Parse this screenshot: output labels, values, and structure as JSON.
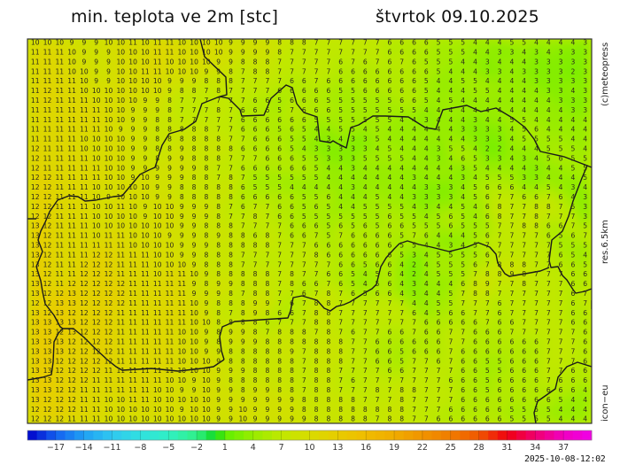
{
  "header": {
    "title": "min. teplota ve 2m [stc]",
    "date": "štvrtok 09.10.2025"
  },
  "side_labels": {
    "copyright": "(c)meteopress",
    "resolution": "res.6.5km",
    "model": "icon−eu"
  },
  "timestamp": "2025-10-08-12:02",
  "colorbar": {
    "range": [
      -20,
      40
    ],
    "tick_labels": [
      "−17",
      "−14",
      "−11",
      "−8",
      "−5",
      "−2",
      "1",
      "4",
      "7",
      "10",
      "13",
      "16",
      "19",
      "22",
      "25",
      "28",
      "31",
      "34",
      "37"
    ],
    "tick_values": [
      -17,
      -14,
      -11,
      -8,
      -5,
      -2,
      1,
      4,
      7,
      10,
      13,
      16,
      19,
      22,
      25,
      28,
      31,
      34,
      37
    ],
    "stops": [
      {
        "value": -20,
        "color": "#0000c8"
      },
      {
        "value": -17,
        "color": "#1460f0"
      },
      {
        "value": -14,
        "color": "#20a0f4"
      },
      {
        "value": -11,
        "color": "#30c8f0"
      },
      {
        "value": -8,
        "color": "#30e0e0"
      },
      {
        "value": -5,
        "color": "#30f0c4"
      },
      {
        "value": -2,
        "color": "#30f088"
      },
      {
        "value": 0,
        "color": "#10d820"
      },
      {
        "value": 1,
        "color": "#60f000"
      },
      {
        "value": 4,
        "color": "#98ec00"
      },
      {
        "value": 7,
        "color": "#c0e800"
      },
      {
        "value": 10,
        "color": "#d8dc00"
      },
      {
        "value": 13,
        "color": "#e8cc00"
      },
      {
        "value": 16,
        "color": "#f0bc00"
      },
      {
        "value": 19,
        "color": "#f0ac00"
      },
      {
        "value": 22,
        "color": "#f09400"
      },
      {
        "value": 25,
        "color": "#f07c00"
      },
      {
        "value": 28,
        "color": "#f05800"
      },
      {
        "value": 31,
        "color": "#f00010"
      },
      {
        "value": 34,
        "color": "#f00070"
      },
      {
        "value": 37,
        "color": "#f000c0"
      },
      {
        "value": 40,
        "color": "#f000e8"
      }
    ]
  },
  "grid": [
    "10 10 10 9 9 9 10 10 11 10 11 11 10 10 10 10 9 9 9 9 8 8 8 7 7 7 7 7 7 6 6 6 6 5 5 5 4 4 4 5 5 4 4 4 4 3",
    "11 11 11 10 9 9 9 10 10 10 11 11 10 10 10 10 9 9 9 9 8 7 7 7 7 7 7 7 7 6 6 6 6 5 5 5 4 4 3 3 4 3 4 3 3 3",
    "11 11 11 10 9 9 9 10 10 10 11 10 10 10 10 9 9 8 8 8 7 7 7 7 7 6 7 6 7 6 7 6 5 5 5 4 4 3 4 4 4 3 3 3 3 3",
    "11 11 11 10 10 9 9 10 10 11 11 10 10 10 9 9 8 7 8 8 7 7 7 7 7 6 6 6 6 6 6 6 6 5 4 4 4 3 3 4 3 3 3 3 2 3",
    "11 11 11 11 10 9 9 10 10 10 10 9 9 9 8 8 8 7 7 7 7 6 6 7 6 6 6 6 6 6 6 6 5 4 4 5 5 4 4 4 4 3 3 3 3 3",
    "11 12 11 11 10 10 10 10 10 10 10 9 8 8 7 8 7 7 7 7 6 6 6 6 6 5 5 6 6 6 6 6 5 4 4 4 5 5 4 4 4 4 3 3 4 3",
    "11 12 11 11 11 10 10 10 10 9 9 8 7 7 7 7 7 7 6 6 5 6 6 6 5 5 5 5 5 5 6 6 5 4 5 4 4 4 4 4 4 4 4 3 3 3",
    "11 11 11 11 11 11 10 10 9 9 9 8 7 7 7 8 7 6 6 6 5 7 6 6 6 5 5 5 5 5 5 5 4 4 4 4 4 4 4 4 4 4 4 4 3 3",
    "11 11 11 11 11 11 10 10 9 9 8 8 7 7 7 7 7 6 6 6 6 6 6 5 5 5 5 5 5 5 4 4 3 4 4 4 3 4 4 5 5 4 4 4 4 4",
    "11 11 11 11 11 11 10 9 9 9 8 8 8 8 8 7 7 6 6 6 5 6 5 4 4 5 5 4 5 4 4 4 4 4 4 3 3 3 3 4 5 6 4 4 4 4",
    "11 11 11 11 10 10 10 10 9 9 8 8 8 8 8 8 7 7 6 6 6 5 5 4 3 4 3 3 5 4 4 4 4 4 4 4 3 3 3 4 5 5 5 5 4 4",
    "12 11 11 11 10 10 10 10 9 9 8 8 9 8 8 8 8 6 6 6 6 5 4 3 3 3 3 3 4 5 4 4 4 3 5 5 4 2 2 4 4 4 5 5 5 4",
    "12 11 11 11 11 10 10 10 9 9 8 9 9 8 8 8 7 7 7 6 6 6 5 5 3 3 3 5 5 5 5 4 4 3 4 6 5 3 3 4 3 4 5 6 5 5",
    "12 11 11 11 11 11 10 10 9 9 9 9 9 9 8 7 7 6 6 6 6 6 6 5 4 4 3 4 4 4 4 4 4 4 4 3 5 4 4 4 4 3 4 4 5 5",
    "12 12 11 11 11 11 10 10 9 10 9 9 9 8 8 7 8 7 5 5 5 5 5 5 4 4 4 4 4 4 4 3 4 4 4 3 4 5 5 5 3 3 4 4 4 5",
    "12 12 11 11 11 10 10 10 10 10 9 9 8 8 8 8 8 6 5 5 5 4 4 4 4 4 3 4 4 4 4 4 3 3 3 4 5 6 6 6 4 4 5 4 3 4",
    "12 12 11 11 11 10 9 10 10 10 9 9 8 8 8 8 8 6 6 6 6 6 5 5 6 4 4 4 5 4 4 3 3 3 3 4 5 6 7 7 6 6 7 6 4 3",
    "12 12 11 11 11 10 10 11 10 9 10 10 9 9 9 8 7 6 7 7 6 6 5 6 5 4 4 5 5 5 5 4 3 4 4 5 4 6 8 7 7 8 8 7 5 3",
    "12 12 11 11 11 10 10 10 10 9 10 10 9 9 9 8 7 7 8 7 6 6 5 5 5 5 5 5 5 6 5 5 4 5 6 5 4 6 8 7 7 8 7 7 7 3",
    "13 12 11 11 11 10 10 10 10 10 10 10 9 9 8 8 8 7 7 7 7 6 6 6 5 6 5 6 5 6 6 5 5 5 6 5 5 5 7 7 8 8 6 6 7 5",
    "13 12 11 11 11 10 11 11 10 10 10 9 9 9 8 9 8 8 6 8 7 6 6 7 5 7 6 6 6 6 5 7 6 4 4 4 5 6 7 7 7 7 6 5 6 7",
    "13 12 11 11 11 11 11 11 10 10 10 10 9 9 9 8 8 8 8 8 7 7 7 6 6 6 6 6 6 6 5 5 4 4 3 4 5 7 7 7 7 7 7 5 5 5",
    "13 12 11 11 11 12 12 11 11 11 10 10 9 9 8 8 8 7 7 7 7 7 7 8 6 6 6 6 6 6 5 3 4 5 5 5 5 6 7 7 7 7 7 6 5 4",
    "13 12 11 11 12 12 12 11 11 11 10 10 10 9 8 8 8 7 7 7 7 7 7 7 7 6 6 5 6 6 4 2 4 5 5 5 6 7 8 8 8 7 7 6 6 5",
    "13 12 11 11 12 12 12 11 11 11 10 11 11 10 9 8 8 8 8 8 7 8 7 7 6 6 5 4 5 6 4 2 4 5 5 5 7 8 8 9 8 7 7 7 6 6",
    "13 12 11 12 12 12 12 12 11 11 11 11 11 9 8 9 9 8 8 8 7 8 6 6 7 6 5 4 5 6 4 3 4 4 4 6 8 9 7 7 8 7 7 7 6 6",
    "13 12 12 13 12 12 12 12 11 11 11 11 11 9 9 9 8 7 8 8 7 7 6 7 8 7 6 5 6 6 4 3 4 4 5 7 8 8 7 7 7 7 7 7 6 7",
    "12 12 13 13 12 12 12 12 11 11 11 11 11 10 9 8 8 8 9 9 7 6 7 8 8 7 7 7 7 7 7 4 4 5 5 7 7 7 6 7 7 7 7 7 6 7",
    "13 12 13 12 12 12 12 11 11 11 11 11 11 10 9 8 7 8 9 8 6 6 7 8 8 7 7 7 7 7 7 6 4 5 6 6 7 7 6 7 7 7 7 7 6 6",
    "13 13 13 13 12 12 12 11 11 11 11 11 11 10 10 8 8 8 8 6 7 7 7 8 8 7 7 7 7 7 7 7 6 6 6 6 6 7 6 6 7 7 7 7 6 6",
    "13 13 12 13 12 12 12 11 11 11 11 11 10 10 9 8 9 9 8 7 8 8 8 7 8 7 6 7 7 6 6 7 6 6 7 7 6 6 6 7 7 7 7 7 7 6",
    "13 13 13 12 12 12 12 11 11 11 11 11 10 10 9 8 9 9 9 8 8 8 8 8 8 8 7 7 6 6 6 6 6 6 7 7 6 6 6 6 6 6 7 7 7 6",
    "13 13 13 12 12 12 12 11 11 11 11 11 10 10 9 9 8 8 8 8 8 9 7 8 8 8 7 7 6 6 5 6 6 6 7 6 6 6 6 6 6 6 7 7 7 6",
    "13 13 12 12 12 12 12 11 11 11 11 11 10 10 10 9 8 8 8 8 8 8 7 8 8 8 7 7 6 6 5 7 7 6 7 6 6 5 5 6 6 6 7 7 7 6",
    "13 13 12 12 12 12 11 11 11 11 11 11 10 10 10 9 9 9 8 8 8 8 7 8 8 7 7 7 7 6 6 7 7 7 7 6 6 5 5 6 6 6 7 7 6 6",
    "13 13 12 12 12 11 11 11 11 11 11 10 10 9 10 9 8 8 8 8 8 8 7 8 8 7 6 7 7 7 7 7 7 7 6 6 6 5 6 6 6 6 7 6 6 6",
    "13 13 12 12 11 11 11 11 11 11 10 10 9 9 10 9 9 8 9 9 8 8 7 8 8 7 7 7 8 7 8 8 7 7 7 6 6 5 6 6 6 6 6 6 6 4",
    "13 12 12 12 11 11 10 10 11 11 10 10 10 10 10 9 9 9 9 9 9 9 8 8 8 8 8 7 7 7 8 7 7 7 7 6 6 6 6 6 6 6 6 5 4 4",
    "12 12 12 12 11 11 10 10 10 10 10 10 9 10 10 9 9 10 9 9 9 9 8 8 8 8 8 8 8 8 8 7 7 7 6 6 6 6 6 5 5 5 5 4 4 4",
    "12 12 12 11 11 11 10 10 10 10 10 10 10 10 10 9 9 10 9 9 9 9 9 8 8 8 8 8 7 8 8 7 7 6 6 6 6 6 6 5 5 5 5 4 4 4"
  ]
}
